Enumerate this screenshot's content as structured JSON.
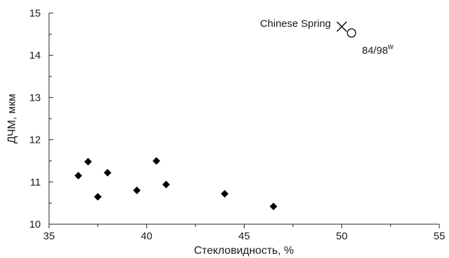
{
  "chart_data": {
    "type": "scatter",
    "title": "",
    "xlabel": "Стекловидность, %",
    "ylabel": "ДЧМ, мкм",
    "xlim": [
      35,
      55
    ],
    "ylim": [
      10,
      15
    ],
    "xticks": [
      "35",
      "40",
      "45",
      "50",
      "55"
    ],
    "yticks": [
      "10",
      "11",
      "12",
      "13",
      "14",
      "15"
    ],
    "grid": false,
    "series": [
      {
        "marker": "diamond",
        "color": "#000000",
        "points": [
          {
            "x": 36.5,
            "y": 11.15
          },
          {
            "x": 37.0,
            "y": 11.48
          },
          {
            "x": 37.5,
            "y": 10.65
          },
          {
            "x": 38.0,
            "y": 11.22
          },
          {
            "x": 39.5,
            "y": 10.8
          },
          {
            "x": 40.5,
            "y": 11.5
          },
          {
            "x": 41.0,
            "y": 10.94
          },
          {
            "x": 44.0,
            "y": 10.72
          },
          {
            "x": 46.5,
            "y": 10.42
          }
        ]
      },
      {
        "name": "Chinese Spring",
        "marker": "cross",
        "color": "#000000",
        "points": [
          {
            "x": 50.0,
            "y": 14.68
          }
        ]
      },
      {
        "name": "84/98",
        "name_superscript": "w",
        "marker": "circle-open",
        "color": "#000000",
        "points": [
          {
            "x": 50.5,
            "y": 14.53
          }
        ]
      }
    ]
  }
}
